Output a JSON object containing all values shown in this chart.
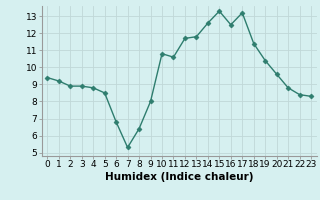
{
  "x": [
    0,
    1,
    2,
    3,
    4,
    5,
    6,
    7,
    8,
    9,
    10,
    11,
    12,
    13,
    14,
    15,
    16,
    17,
    18,
    19,
    20,
    21,
    22,
    23
  ],
  "y": [
    9.4,
    9.2,
    8.9,
    8.9,
    8.8,
    8.5,
    6.8,
    5.3,
    6.4,
    8.0,
    10.8,
    10.6,
    11.7,
    11.8,
    12.6,
    13.3,
    12.5,
    13.2,
    11.4,
    10.4,
    9.6,
    8.8,
    8.4,
    8.3
  ],
  "line_color": "#2e7d6e",
  "marker": "D",
  "marker_size": 2.5,
  "bg_color": "#d6f0f0",
  "grid_color": "#c0d8d8",
  "xlabel": "Humidex (Indice chaleur)",
  "ylabel": "",
  "title": "",
  "ylim": [
    4.8,
    13.6
  ],
  "xlim": [
    -0.5,
    23.5
  ],
  "yticks": [
    5,
    6,
    7,
    8,
    9,
    10,
    11,
    12,
    13
  ],
  "xticks": [
    0,
    1,
    2,
    3,
    4,
    5,
    6,
    7,
    8,
    9,
    10,
    11,
    12,
    13,
    14,
    15,
    16,
    17,
    18,
    19,
    20,
    21,
    22,
    23
  ],
  "tick_fontsize": 6.5,
  "xlabel_fontsize": 7.5
}
